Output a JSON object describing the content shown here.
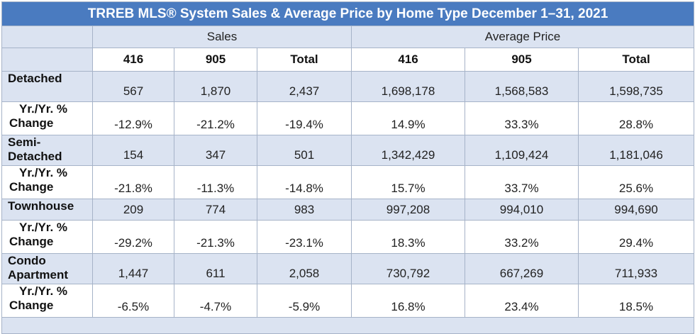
{
  "table": {
    "title": "TRREB MLS® System Sales & Average Price by Home Type December 1–31, 2021",
    "groups": {
      "sales": "Sales",
      "avg_price": "Average Price"
    },
    "columns": [
      "416",
      "905",
      "Total",
      "416",
      "905",
      "Total"
    ],
    "rows": [
      {
        "label": "Detached",
        "values": [
          "567",
          "1,870",
          "2,437",
          "1,698,178",
          "1,568,583",
          "1,598,735"
        ]
      },
      {
        "label_l1": "Yr./Yr. %",
        "label_l2": "Change",
        "values": [
          "-12.9%",
          "-21.2%",
          "-19.4%",
          "14.9%",
          "33.3%",
          "28.8%"
        ]
      },
      {
        "label_l1": "Semi-",
        "label_l2": "Detached",
        "values": [
          "154",
          "347",
          "501",
          "1,342,429",
          "1,109,424",
          "1,181,046"
        ]
      },
      {
        "label_l1": "Yr./Yr. %",
        "label_l2": "Change",
        "values": [
          "-21.8%",
          "-11.3%",
          "-14.8%",
          "15.7%",
          "33.7%",
          "25.6%"
        ]
      },
      {
        "label": "Townhouse",
        "values": [
          "209",
          "774",
          "983",
          "997,208",
          "994,010",
          "994,690"
        ]
      },
      {
        "label_l1": "Yr./Yr. %",
        "label_l2": "Change",
        "values": [
          "-29.2%",
          "-21.3%",
          "-23.1%",
          "18.3%",
          "33.2%",
          "29.4%"
        ]
      },
      {
        "label_l1": "Condo",
        "label_l2": "Apartment",
        "values": [
          "1,447",
          "611",
          "2,058",
          "730,792",
          "667,269",
          "711,933"
        ]
      },
      {
        "label_l1": "Yr./Yr. %",
        "label_l2": "Change",
        "values": [
          "-6.5%",
          "-4.7%",
          "-5.9%",
          "16.8%",
          "23.4%",
          "18.5%"
        ]
      }
    ]
  },
  "colors": {
    "title_bg": "#4a7bc0",
    "row_shade": "#dbe3f1",
    "border": "#a6b3c8"
  }
}
